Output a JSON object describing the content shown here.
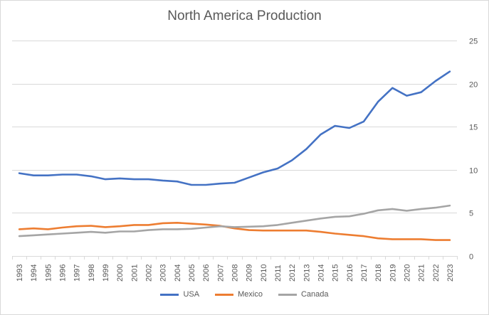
{
  "chart_data": {
    "type": "line",
    "title": "North America Production",
    "xlabel": "",
    "ylabel": "",
    "ylim": [
      0,
      25
    ],
    "y_axis_position": "right",
    "yticks": [
      0,
      5,
      10,
      15,
      20,
      25
    ],
    "grid": true,
    "legend_position": "bottom",
    "categories": [
      "1993",
      "1994",
      "1995",
      "1996",
      "1997",
      "1998",
      "1999",
      "2000",
      "2001",
      "2002",
      "2003",
      "2004",
      "2005",
      "2006",
      "2007",
      "2008",
      "2009",
      "2010",
      "2011",
      "2012",
      "2013",
      "2014",
      "2015",
      "2016",
      "2017",
      "2018",
      "2019",
      "2020",
      "2021",
      "2022",
      "2023"
    ],
    "series": [
      {
        "name": "USA",
        "color": "#4472c4",
        "values": [
          9.6,
          9.35,
          9.35,
          9.45,
          9.45,
          9.25,
          8.9,
          9.0,
          8.9,
          8.9,
          8.75,
          8.65,
          8.25,
          8.25,
          8.4,
          8.5,
          9.1,
          9.7,
          10.15,
          11.1,
          12.4,
          14.1,
          15.1,
          14.85,
          15.6,
          17.9,
          19.5,
          18.6,
          19.0,
          20.3,
          21.4
        ]
      },
      {
        "name": "Mexico",
        "color": "#ed7d31",
        "values": [
          3.1,
          3.2,
          3.1,
          3.3,
          3.45,
          3.5,
          3.35,
          3.45,
          3.6,
          3.6,
          3.8,
          3.85,
          3.75,
          3.65,
          3.5,
          3.2,
          3.0,
          2.95,
          2.95,
          2.95,
          2.95,
          2.8,
          2.6,
          2.45,
          2.3,
          2.05,
          1.95,
          1.95,
          1.95,
          1.85,
          1.85
        ]
      },
      {
        "name": "Canada",
        "color": "#a5a5a5",
        "values": [
          2.3,
          2.4,
          2.5,
          2.6,
          2.7,
          2.8,
          2.7,
          2.85,
          2.85,
          3.0,
          3.1,
          3.1,
          3.15,
          3.3,
          3.45,
          3.35,
          3.4,
          3.45,
          3.6,
          3.85,
          4.1,
          4.35,
          4.55,
          4.6,
          4.9,
          5.3,
          5.45,
          5.25,
          5.45,
          5.6,
          5.85
        ]
      }
    ]
  }
}
